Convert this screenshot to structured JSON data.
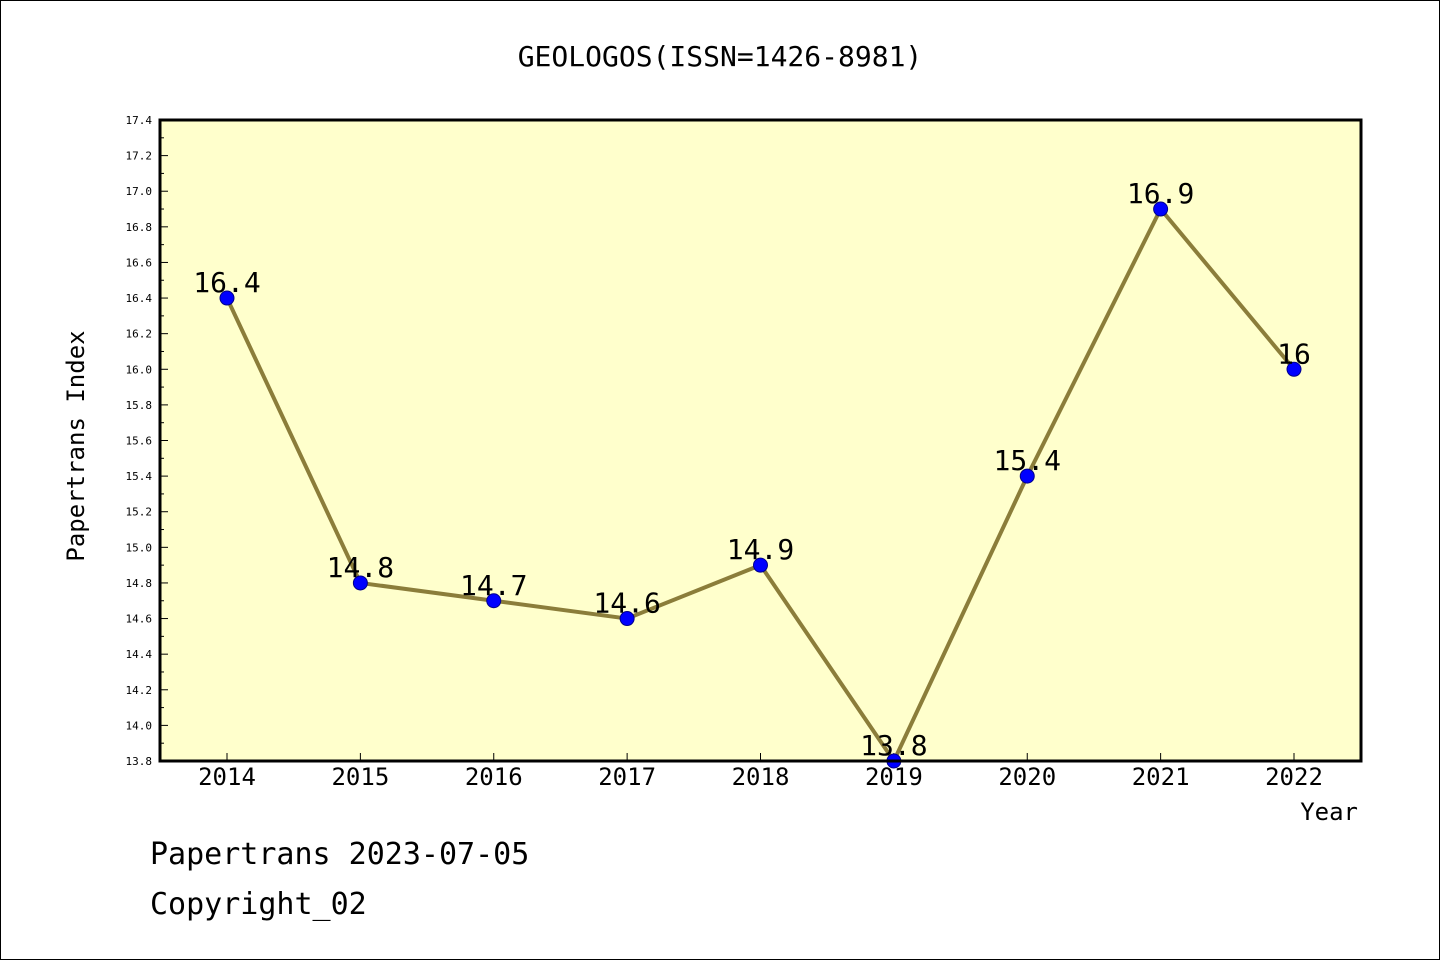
{
  "chart_data": {
    "type": "line",
    "title": "GEOLOGOS(ISSN=1426-8981)",
    "xlabel": "Year",
    "ylabel": "Papertrans Index",
    "categories": [
      "2014",
      "2015",
      "2016",
      "2017",
      "2018",
      "2019",
      "2020",
      "2021",
      "2022"
    ],
    "values": [
      16.4,
      14.8,
      14.7,
      14.6,
      14.9,
      13.8,
      15.4,
      16.9,
      16
    ],
    "data_labels": [
      "16.4",
      "14.8",
      "14.7",
      "14.6",
      "14.9",
      "13.8",
      "15.4",
      "16.9",
      "16"
    ],
    "ylim": [
      13.8,
      17.4
    ],
    "yticks": [
      "13.8",
      "14.0",
      "14.2",
      "14.4",
      "14.6",
      "14.8",
      "15.0",
      "15.2",
      "15.4",
      "15.6",
      "15.8",
      "16.0",
      "16.2",
      "16.4",
      "16.6",
      "16.8",
      "17.0",
      "17.2",
      "17.4"
    ],
    "grid": false,
    "colors": {
      "plot_background": "#FFFFCC",
      "line": "#8B7D3A",
      "marker": "#0000FF"
    }
  },
  "footer": {
    "line1": "Papertrans 2023-07-05",
    "line2": "Copyright_02"
  }
}
